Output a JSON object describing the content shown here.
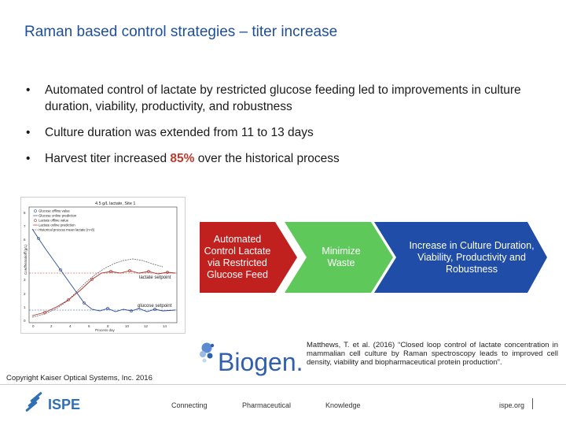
{
  "title": "Raman based control strategies – titer increase",
  "bullets": [
    {
      "text": "Automated control of lactate by restricted glucose feeding led to improvements in culture duration, viability, productivity, and robustness"
    },
    {
      "text": "Culture duration was extended from 11 to 13 days"
    },
    {
      "pre": "Harvest titer increased ",
      "highlight": "85%",
      "post": " over the historical process"
    }
  ],
  "figure": {
    "title": "4.5 g/L lactate, Site 1",
    "legend": [
      "Glucose offline value",
      "Glucose online prediction",
      "Lactate offline value",
      "Lactate online prediction",
      "Historical process mean lactate (n=8)"
    ],
    "ylabel": "Concentration (g/L)",
    "xlabel": "Process day",
    "x_ticks": [
      "0",
      "2",
      "4",
      "6",
      "8",
      "10",
      "12",
      "14"
    ],
    "y_ticks": [
      "0",
      "1",
      "2",
      "3",
      "4",
      "5",
      "6",
      "7",
      "8"
    ],
    "annotations": {
      "lactate": "lactate setpoint",
      "glucose": "glucose setpoint"
    }
  },
  "flow": [
    {
      "text": "Automated Control Lactate via Restricted Glucose Feed",
      "color": "#c0201e"
    },
    {
      "text": "Minimize Waste",
      "color": "#5ec95a"
    },
    {
      "text": "Increase in Culture Duration, Viability, Productivity and Robustness",
      "color": "#1f4da8"
    }
  ],
  "logo": {
    "brand": "Biogen."
  },
  "citation": "Matthews, T. et al. (2016) “Closed loop control of lactate concentration in mammalian cell culture by Raman spectroscopy leads to improved cell density, viability and biopharmaceutical protein production”.",
  "copyright": "Copyright Kaiser Optical Systems, Inc. 2016",
  "footer": {
    "brand": "ISPE",
    "items": [
      "Connecting",
      "Pharmaceutical",
      "Knowledge",
      "ispe.org"
    ]
  },
  "colors": {
    "title": "#1f4e9a",
    "highlight": "#c0392b",
    "biogen": "#2f5fae"
  }
}
